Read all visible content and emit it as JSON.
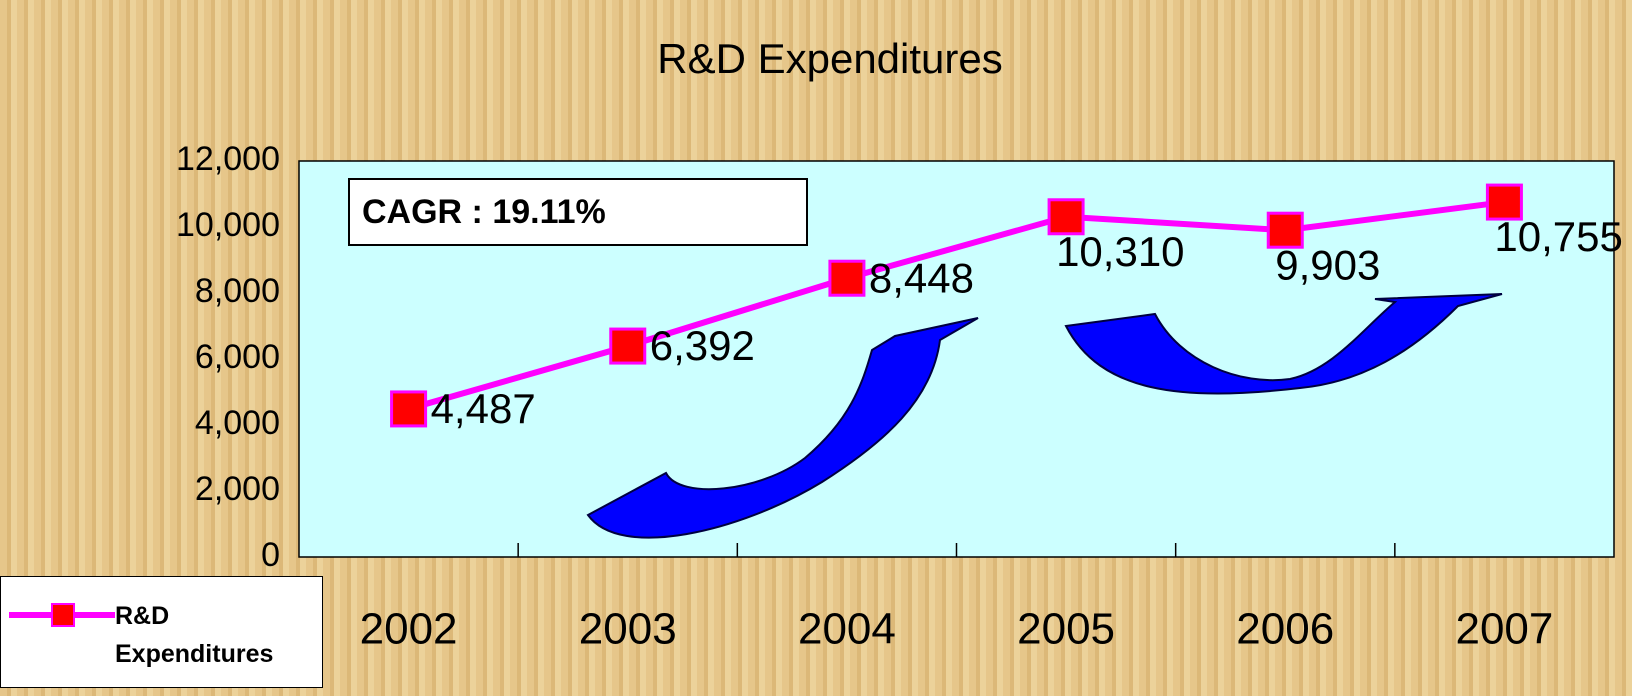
{
  "chart_data": {
    "type": "line",
    "title": "R&D Expenditures",
    "categories": [
      "2002",
      "2003",
      "2004",
      "2005",
      "2006",
      "2007"
    ],
    "series": [
      {
        "name": "R&D Expenditures",
        "color": "#ff00ff",
        "marker_color": "#ff0000",
        "values": [
          4487,
          6392,
          8448,
          10310,
          9903,
          10755
        ],
        "value_labels": [
          "4,487",
          "6,392",
          "8,448",
          "10,310",
          "9,903",
          "10,755"
        ]
      }
    ],
    "ylim": [
      0,
      12000
    ],
    "yticks": [
      0,
      {
        "value": 2000,
        "label": "2,000"
      },
      {
        "value": 4000,
        "label": "4,000"
      },
      {
        "value": 6000,
        "label": "6,000"
      },
      {
        "value": 8000,
        "label": "8,000"
      },
      {
        "value": 10000,
        "label": "10,000"
      },
      {
        "value": 12000,
        "label": "12,000"
      }
    ],
    "grid": false,
    "annotation": "CAGR : 19.11%",
    "legend": "bottom-left"
  }
}
